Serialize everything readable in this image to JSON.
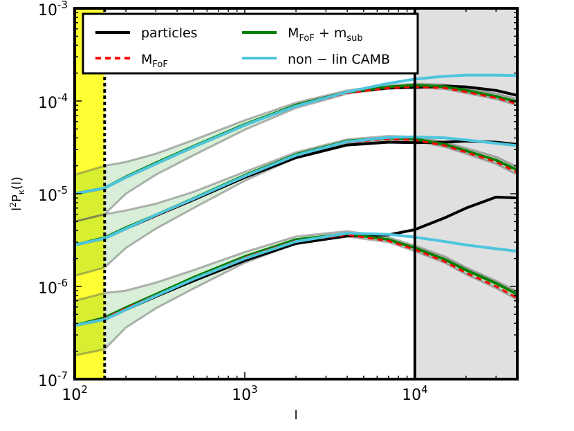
{
  "chart_data": {
    "type": "line",
    "xscale": "log",
    "yscale": "log",
    "xlim": [
      100,
      40000
    ],
    "ylim": [
      1e-07,
      0.001
    ],
    "xlabel": {
      "base": "l"
    },
    "ylabel": {
      "main": "l",
      "sup": "2",
      "p": "P",
      "sub": "κ",
      "arg": "(l)"
    },
    "x_ticks": [
      {
        "value": 100,
        "base": "10",
        "exp": "2"
      },
      {
        "value": 1000,
        "base": "10",
        "exp": "3"
      },
      {
        "value": 10000,
        "base": "10",
        "exp": "4"
      }
    ],
    "y_ticks": [
      {
        "value": 1e-07,
        "base": "10",
        "exp": "-7"
      },
      {
        "value": 1e-06,
        "base": "10",
        "exp": "-6"
      },
      {
        "value": 1e-05,
        "base": "10",
        "exp": "-5"
      },
      {
        "value": 0.0001,
        "base": "10",
        "exp": "-4"
      },
      {
        "value": 0.001,
        "base": "10",
        "exp": "-3"
      }
    ],
    "shaded_regions": [
      {
        "name": "yellow-band",
        "x0": 100,
        "x1": 150,
        "color": "#ffff33"
      },
      {
        "name": "gray-band",
        "x0": 10000,
        "x1": 40000,
        "color": "#e0e0e0"
      }
    ],
    "vertical_lines": [
      {
        "x": 150,
        "style": "dashed",
        "color": "#000000"
      },
      {
        "x": 10000,
        "style": "solid",
        "color": "#000000"
      }
    ],
    "legend": {
      "position": "top",
      "entries": [
        {
          "key": "particles",
          "label": "particles",
          "color": "#000000",
          "style": "solid"
        },
        {
          "key": "mfof",
          "label_main": "M",
          "label_sub": "FoF",
          "color": "#ff0000",
          "style": "dashed"
        },
        {
          "key": "mfof_msub",
          "label_main": "M",
          "label_sub": "FoF",
          "label_plus": " + m",
          "label_sub2": "sub",
          "color": "#008000",
          "style": "solid"
        },
        {
          "key": "camb",
          "label": "non − lin CAMB",
          "color": "#4ec5dd",
          "style": "solid"
        }
      ]
    },
    "groups": [
      {
        "name": "upper",
        "x": [
          100,
          150,
          200,
          300,
          500,
          1000,
          2000,
          4000,
          7000,
          10000,
          15000,
          20000,
          30000,
          40000
        ],
        "particles": [
          1e-05,
          1.15e-05,
          1.5e-05,
          2.1e-05,
          3.2e-05,
          5.5e-05,
          9e-05,
          0.000125,
          0.000138,
          0.00014,
          0.000145,
          0.000142,
          0.00013,
          0.000115
        ],
        "mfof": [
          1e-05,
          1.15e-05,
          1.5e-05,
          2.1e-05,
          3.2e-05,
          5.5e-05,
          8.8e-05,
          0.000122,
          0.000138,
          0.000142,
          0.000138,
          0.000125,
          0.000108,
          9.3e-05
        ],
        "mfof_msub": [
          1e-05,
          1.15e-05,
          1.52e-05,
          2.15e-05,
          3.25e-05,
          5.6e-05,
          9e-05,
          0.000125,
          0.000142,
          0.000148,
          0.000143,
          0.00013,
          0.000112,
          9.8e-05
        ],
        "camb": [
          1e-05,
          1.15e-05,
          1.5e-05,
          2.1e-05,
          3.2e-05,
          5.5e-05,
          8.8e-05,
          0.000125,
          0.000155,
          0.000172,
          0.000185,
          0.00019,
          0.00019,
          0.000188
        ],
        "band_low": [
          5e-06,
          6e-06,
          1e-05,
          1.6e-05,
          2.6e-05,
          4.9e-05,
          8.4e-05,
          0.00012,
          0.000136,
          0.00014,
          0.000135,
          0.000122,
          0.000105,
          9e-05
        ],
        "band_high": [
          1.6e-05,
          2e-05,
          2.2e-05,
          2.7e-05,
          3.8e-05,
          6.2e-05,
          9.6e-05,
          0.00013,
          0.000148,
          0.000154,
          0.00015,
          0.000138,
          0.00012,
          0.000105
        ]
      },
      {
        "name": "middle",
        "x": [
          100,
          150,
          200,
          300,
          500,
          1000,
          2000,
          4000,
          7000,
          10000,
          15000,
          20000,
          30000,
          40000
        ],
        "particles": [
          2.8e-06,
          3.3e-06,
          4.2e-06,
          5.8e-06,
          8.6e-06,
          1.5e-05,
          2.45e-05,
          3.35e-05,
          3.6e-05,
          3.55e-05,
          3.6e-05,
          3.7e-05,
          3.6e-05,
          3.4e-05
        ],
        "mfof": [
          2.8e-06,
          3.3e-06,
          4.2e-06,
          5.8e-06,
          8.7e-06,
          1.55e-05,
          2.6e-05,
          3.6e-05,
          3.9e-05,
          3.8e-05,
          3.3e-05,
          2.8e-05,
          2.2e-05,
          1.7e-05
        ],
        "mfof_msub": [
          2.8e-06,
          3.35e-06,
          4.3e-06,
          5.9e-06,
          8.9e-06,
          1.58e-05,
          2.65e-05,
          3.7e-05,
          4e-05,
          3.9e-05,
          3.4e-05,
          2.9e-05,
          2.3e-05,
          1.8e-05
        ],
        "camb": [
          2.8e-06,
          3.3e-06,
          4.2e-06,
          5.9e-06,
          8.8e-06,
          1.55e-05,
          2.6e-05,
          3.65e-05,
          4.05e-05,
          4.1e-05,
          4e-05,
          3.8e-05,
          3.5e-05,
          3.3e-05
        ],
        "band_low": [
          1.3e-06,
          1.6e-06,
          2.6e-06,
          4.2e-06,
          7e-06,
          1.38e-05,
          2.45e-05,
          3.5e-05,
          3.8e-05,
          3.7e-05,
          3.2e-05,
          2.7e-05,
          2.1e-05,
          1.6e-05
        ],
        "band_high": [
          5e-06,
          6e-06,
          6.6e-06,
          7.8e-06,
          1.05e-05,
          1.72e-05,
          2.8e-05,
          3.85e-05,
          4.2e-05,
          4.1e-05,
          3.6e-05,
          3.1e-05,
          2.5e-05,
          1.95e-05
        ]
      },
      {
        "name": "lower",
        "x": [
          100,
          150,
          200,
          300,
          500,
          1000,
          2000,
          4000,
          7000,
          10000,
          15000,
          20000,
          30000,
          40000
        ],
        "particles": [
          3.8e-07,
          4.4e-07,
          5.6e-07,
          7.8e-07,
          1.15e-06,
          1.9e-06,
          2.9e-06,
          3.5e-06,
          3.6e-06,
          4.1e-06,
          5.5e-06,
          7e-06,
          9.2e-06,
          9e-06
        ],
        "mfof": [
          3.8e-07,
          4.5e-07,
          5.8e-07,
          8e-07,
          1.2e-06,
          2.05e-06,
          3.1e-06,
          3.6e-06,
          3.1e-06,
          2.5e-06,
          1.85e-06,
          1.4e-06,
          1e-06,
          7.5e-07
        ],
        "mfof_msub": [
          3.8e-07,
          4.6e-07,
          5.9e-07,
          8.2e-07,
          1.25e-06,
          2.1e-06,
          3.2e-06,
          3.7e-06,
          3.2e-06,
          2.6e-06,
          1.95e-06,
          1.5e-06,
          1.08e-06,
          8.2e-07
        ],
        "camb": [
          3.8e-07,
          4.4e-07,
          5.6e-07,
          7.9e-07,
          1.2e-06,
          2e-06,
          3.05e-06,
          3.75e-06,
          3.65e-06,
          3.4e-06,
          3.05e-06,
          2.8e-06,
          2.55e-06,
          2.4e-06
        ],
        "band_low": [
          1.8e-07,
          2.1e-07,
          3.6e-07,
          5.8e-07,
          9.5e-07,
          1.8e-06,
          2.9e-06,
          3.45e-06,
          3e-06,
          2.4e-06,
          1.8e-06,
          1.35e-06,
          9.6e-07,
          7.2e-07
        ],
        "band_high": [
          7e-07,
          8.5e-07,
          9e-07,
          1.1e-06,
          1.5e-06,
          2.35e-06,
          3.45e-06,
          3.95e-06,
          3.4e-06,
          2.75e-06,
          2.1e-06,
          1.6e-06,
          1.15e-06,
          8.8e-07
        ]
      }
    ]
  }
}
